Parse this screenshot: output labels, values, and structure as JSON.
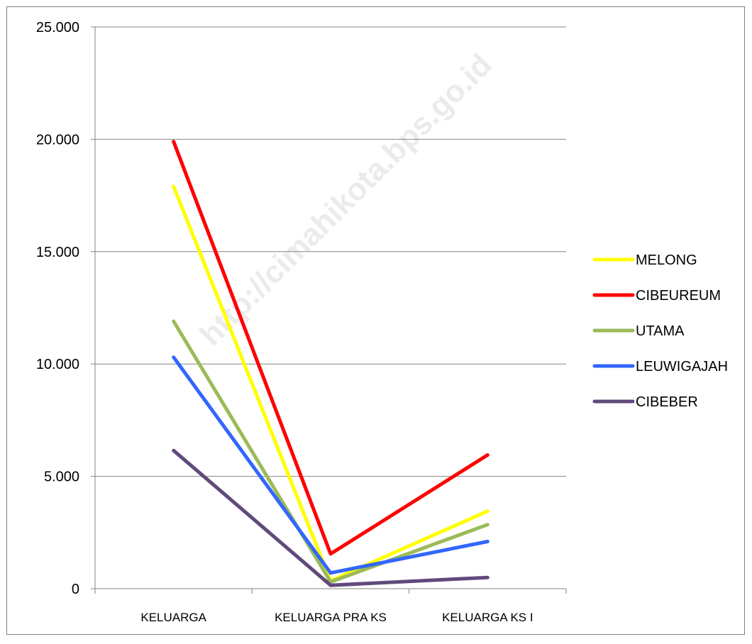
{
  "chart_data": {
    "type": "line",
    "categories": [
      "KELUARGA",
      "KELUARGA PRA KS",
      "KELUARGA KS I"
    ],
    "ylim": [
      0,
      25000
    ],
    "yticks": [
      0,
      5000,
      10000,
      15000,
      20000,
      25000
    ],
    "ytick_labels": [
      "0",
      "5.000",
      "10.000",
      "15.000",
      "20.000",
      "25.000"
    ],
    "grid": true,
    "legend_position": "right",
    "series": [
      {
        "name": "MELONG",
        "color": "#ffff00",
        "values": [
          17900,
          350,
          3450
        ]
      },
      {
        "name": "CIBEUREUM",
        "color": "#ff0000",
        "values": [
          19900,
          1550,
          5950
        ]
      },
      {
        "name": "UTAMA",
        "color": "#9bbb59",
        "values": [
          11900,
          300,
          2850
        ]
      },
      {
        "name": "LEUWIGAJAH",
        "color": "#3366ff",
        "values": [
          10300,
          700,
          2100
        ]
      },
      {
        "name": "CIBEBER",
        "color": "#604a7b",
        "values": [
          6150,
          150,
          500
        ]
      }
    ]
  },
  "watermark": "http://cimahikota.bps.go.id"
}
